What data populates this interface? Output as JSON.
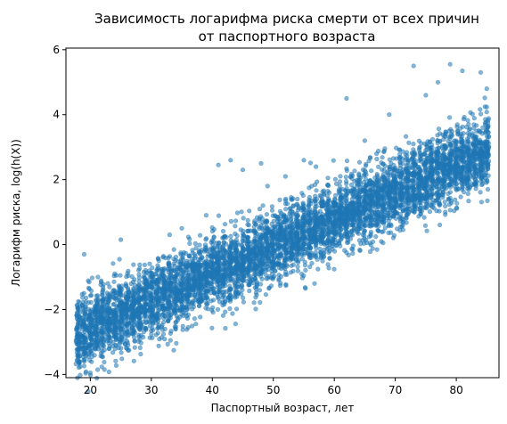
{
  "chart_data": {
    "type": "scatter",
    "title_line1": "Зависимость логарифма риска смерти от всех причин",
    "title_line2": "от паспортного возраста",
    "xlabel": "Паспортный возраст, лет",
    "ylabel": "Логарифм риска, log(h(X))",
    "xlim": [
      16,
      87
    ],
    "ylim": [
      -4.1,
      6.05
    ],
    "xticks": [
      20,
      30,
      40,
      50,
      60,
      70,
      80
    ],
    "yticks": [
      -4,
      -2,
      0,
      2,
      4,
      6
    ],
    "ytick_labels": [
      "−4",
      "−2",
      "0",
      "2",
      "4",
      "6"
    ],
    "grid": false,
    "point_color": "#1f77b4",
    "point_alpha": 0.55,
    "x_range": [
      18,
      85
    ],
    "trend": {
      "slope": 0.0845,
      "intercept": -4.3,
      "spread": 0.55
    },
    "outliers": [
      {
        "x": 19,
        "y": -0.3
      },
      {
        "x": 25,
        "y": 0.15
      },
      {
        "x": 33,
        "y": 0.3
      },
      {
        "x": 35,
        "y": 0.5
      },
      {
        "x": 39,
        "y": 0.9
      },
      {
        "x": 41,
        "y": 2.45
      },
      {
        "x": 43,
        "y": 2.6
      },
      {
        "x": 45,
        "y": 2.3
      },
      {
        "x": 48,
        "y": 2.5
      },
      {
        "x": 52,
        "y": 2.1
      },
      {
        "x": 55,
        "y": 2.6
      },
      {
        "x": 57,
        "y": 2.4
      },
      {
        "x": 62,
        "y": 4.5
      },
      {
        "x": 65,
        "y": 3.2
      },
      {
        "x": 69,
        "y": 4.0
      },
      {
        "x": 73,
        "y": 5.5
      },
      {
        "x": 75,
        "y": 4.6
      },
      {
        "x": 77,
        "y": 5.0
      },
      {
        "x": 79,
        "y": 5.55
      },
      {
        "x": 81,
        "y": 5.35
      },
      {
        "x": 84,
        "y": 5.3
      },
      {
        "x": 85,
        "y": 4.8
      },
      {
        "x": 19,
        "y": -3.6
      },
      {
        "x": 22,
        "y": -3.3
      },
      {
        "x": 60,
        "y": 0.4
      },
      {
        "x": 70,
        "y": 1.0
      }
    ]
  }
}
